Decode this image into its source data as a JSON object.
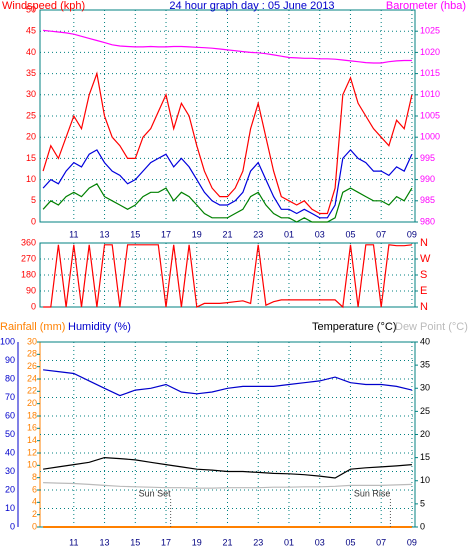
{
  "chart_data": [
    {
      "type": "line",
      "title": "24 hour graph day : 05 June 2013",
      "ylabel": "Windspeed (kph)",
      "y2label": "Barometer (hba)",
      "ylabel_color": "#ff0000",
      "y2label_color": "#ff00ff",
      "title_color": "#0000cc",
      "xlim": [
        8.8,
        33.2
      ],
      "xticks": [
        11,
        13,
        15,
        17,
        19,
        21,
        23,
        {
          "value": 25,
          "label": "01"
        },
        {
          "value": 27,
          "label": "03"
        },
        {
          "value": 29,
          "label": "05"
        },
        {
          "value": 31,
          "label": "07"
        },
        {
          "value": 33,
          "label": "09"
        }
      ],
      "ylim": [
        0,
        50
      ],
      "yticks": [
        0,
        5,
        10,
        15,
        20,
        25,
        30,
        35,
        40,
        45,
        50
      ],
      "y2lim": [
        980,
        1030
      ],
      "y2ticks": [
        980,
        985,
        990,
        995,
        1000,
        1005,
        1010,
        1015,
        1020,
        1025
      ],
      "grid": true,
      "x": [
        9,
        9.5,
        10,
        10.5,
        11,
        11.5,
        12,
        12.5,
        13,
        13.5,
        14,
        14.5,
        15,
        15.5,
        16,
        16.5,
        17,
        17.5,
        18,
        18.5,
        19,
        19.5,
        20,
        20.5,
        21,
        21.5,
        22,
        22.5,
        23,
        23.5,
        24,
        24.5,
        25,
        25.5,
        26,
        26.5,
        27,
        27.5,
        28,
        28.5,
        29,
        29.5,
        30,
        30.5,
        31,
        31.5,
        32,
        32.5,
        33
      ],
      "series": [
        {
          "color": "#ff0000",
          "values": [
            12,
            18,
            15,
            20,
            25,
            22,
            30,
            35,
            25,
            20,
            18,
            15,
            15,
            20,
            22,
            26,
            30,
            22,
            28,
            25,
            18,
            12,
            8,
            6,
            6,
            8,
            12,
            22,
            28,
            20,
            12,
            6,
            5,
            4,
            5,
            3,
            2,
            2,
            8,
            30,
            34,
            28,
            25,
            22,
            20,
            18,
            24,
            22,
            30
          ]
        },
        {
          "color": "#008000",
          "values": [
            3,
            5,
            4,
            6,
            7,
            6,
            8,
            9,
            6,
            5,
            4,
            3,
            4,
            6,
            7,
            7,
            8,
            5,
            7,
            6,
            4,
            2,
            1,
            1,
            1,
            2,
            3,
            6,
            7,
            4,
            2,
            1,
            1,
            0,
            1,
            0,
            0,
            0,
            1,
            7,
            8,
            7,
            6,
            5,
            5,
            4,
            6,
            5,
            8
          ]
        },
        {
          "color": "#0000dd",
          "values": [
            8,
            10,
            9,
            12,
            14,
            13,
            16,
            17,
            14,
            12,
            11,
            9,
            10,
            12,
            14,
            15,
            16,
            13,
            15,
            13,
            10,
            7,
            5,
            4,
            4,
            5,
            7,
            12,
            14,
            10,
            6,
            3,
            3,
            2,
            3,
            2,
            1,
            1,
            4,
            15,
            17,
            15,
            14,
            12,
            12,
            11,
            13,
            12,
            16
          ]
        },
        {
          "color": "#ff00ff",
          "axis": "y2",
          "values": [
            1025.2,
            1025,
            1024.8,
            1024.6,
            1024.3,
            1023.8,
            1023.3,
            1022.8,
            1022.3,
            1021.8,
            1021.5,
            1021.4,
            1021.3,
            1021.3,
            1021.4,
            1021.3,
            1021.3,
            1021.4,
            1021.4,
            1021.3,
            1021.2,
            1021.1,
            1021,
            1020.8,
            1020.6,
            1020.4,
            1020.2,
            1020,
            1019.9,
            1019.7,
            1019.4,
            1019.1,
            1018.8,
            1018.7,
            1018.6,
            1018.6,
            1018.5,
            1018.5,
            1018.4,
            1018.2,
            1018,
            1017.8,
            1017.6,
            1017.5,
            1017.5,
            1017.8,
            1018,
            1018.1,
            1018.1
          ]
        }
      ],
      "ytick_color": "#ff0000",
      "y2tick_color": "#ff00ff"
    },
    {
      "type": "line",
      "xlim": [
        8.8,
        33.2
      ],
      "xticks": [
        11,
        13,
        15,
        17,
        19,
        21,
        23,
        25,
        27,
        29,
        31,
        33
      ],
      "ylim": [
        0,
        360
      ],
      "yticks": [
        0,
        90,
        180,
        270,
        360
      ],
      "y2lim": [
        0,
        360
      ],
      "y2ticks": [
        {
          "value": 360,
          "label": "N"
        },
        {
          "value": 270,
          "label": "W"
        },
        {
          "value": 180,
          "label": "S"
        },
        {
          "value": 90,
          "label": "E"
        },
        {
          "value": 0,
          "label": "N"
        }
      ],
      "grid": true,
      "x": [
        9,
        9.5,
        10,
        10.5,
        11,
        11.5,
        12,
        12.5,
        13,
        13.5,
        14,
        14.5,
        15,
        15.5,
        16,
        16.5,
        17,
        17.5,
        18,
        18.5,
        19,
        19.5,
        20,
        20.5,
        21,
        21.5,
        22,
        22.5,
        23,
        23.5,
        24,
        24.5,
        25,
        25.5,
        26,
        26.5,
        27,
        27.5,
        28,
        28.5,
        29,
        29.5,
        30,
        30.5,
        31,
        31.5,
        32,
        32.5,
        33
      ],
      "series": [
        {
          "color": "#ff0000",
          "values": [
            0,
            0,
            350,
            0,
            350,
            0,
            350,
            0,
            350,
            350,
            0,
            350,
            350,
            350,
            350,
            350,
            0,
            350,
            0,
            350,
            0,
            20,
            20,
            20,
            25,
            30,
            35,
            20,
            350,
            10,
            30,
            40,
            40,
            40,
            40,
            40,
            40,
            40,
            40,
            0,
            350,
            0,
            350,
            350,
            0,
            350,
            345,
            345,
            350
          ]
        }
      ],
      "ytick_color": "#ff0000",
      "y2tick_color": "#ff0000"
    },
    {
      "type": "line",
      "xlim": [
        8.8,
        33.2
      ],
      "xticks": [
        11,
        13,
        15,
        17,
        19,
        21,
        23,
        {
          "value": 25,
          "label": "01"
        },
        {
          "value": 27,
          "label": "03"
        },
        {
          "value": 29,
          "label": "05"
        },
        {
          "value": 31,
          "label": "07"
        },
        {
          "value": 33,
          "label": "09"
        }
      ],
      "ylim": [
        0,
        100
      ],
      "yticks": [
        0,
        10,
        20,
        30,
        40,
        50,
        60,
        70,
        80,
        90,
        100
      ],
      "y2lim": [
        0,
        40
      ],
      "y2ticks": [
        0,
        5,
        10,
        15,
        20,
        25,
        30,
        35,
        40
      ],
      "y3lim": [
        0,
        30
      ],
      "y3ticks": [
        0,
        2,
        4,
        6,
        8,
        10,
        12,
        14,
        16,
        18,
        20,
        22,
        24,
        26,
        28,
        30
      ],
      "ytick_color": "#0000cc",
      "y2tick_color": "#000000",
      "y3tick_color": "#ff8000",
      "grid": true,
      "x": [
        9,
        10,
        11,
        12,
        13,
        14,
        15,
        16,
        17,
        18,
        19,
        20,
        21,
        22,
        23,
        24,
        25,
        26,
        27,
        28,
        29,
        30,
        31,
        32,
        33
      ],
      "series": [
        {
          "name": "Rainfall (mm)",
          "color": "#ff8000",
          "axis": "y3",
          "values": [
            0,
            0,
            0,
            0,
            0,
            0,
            0,
            0,
            0,
            0,
            0,
            0,
            0,
            0,
            0,
            0,
            0,
            0,
            0,
            0,
            0,
            0,
            0,
            0,
            0
          ]
        },
        {
          "name": "Humidity (%)",
          "color": "#0000cc",
          "values": [
            85,
            84,
            83,
            79,
            75,
            71,
            74,
            75,
            77,
            73,
            72,
            73,
            75,
            76,
            76,
            76,
            77,
            78,
            79,
            81,
            78,
            77,
            77,
            76,
            74
          ]
        },
        {
          "name": "Temperature (°C)",
          "color": "#000000",
          "axis": "y2",
          "values": [
            12.5,
            13,
            13.5,
            14,
            15,
            14.8,
            14.5,
            14,
            13.5,
            13,
            12.5,
            12.3,
            12,
            12,
            11.8,
            11.6,
            11.5,
            11.3,
            11,
            10.6,
            12.5,
            12.8,
            13,
            13.2,
            13.5
          ]
        },
        {
          "name": "Dew Point (°C)",
          "color": "#bbbbbb",
          "axis": "y2",
          "values": [
            9.6,
            9.5,
            9.4,
            9.2,
            9,
            8.8,
            8.7,
            8.6,
            8.5,
            8.5,
            8.4,
            8.4,
            8.5,
            8.5,
            8.5,
            8.6,
            8.6,
            8.7,
            8.7,
            8.8,
            9,
            9,
            9,
            9.1,
            9.2
          ]
        }
      ],
      "annotations": [
        {
          "text": "Sun Set",
          "x": 17.3
        },
        {
          "text": "Sun Rise",
          "x": 31.6
        }
      ]
    }
  ]
}
